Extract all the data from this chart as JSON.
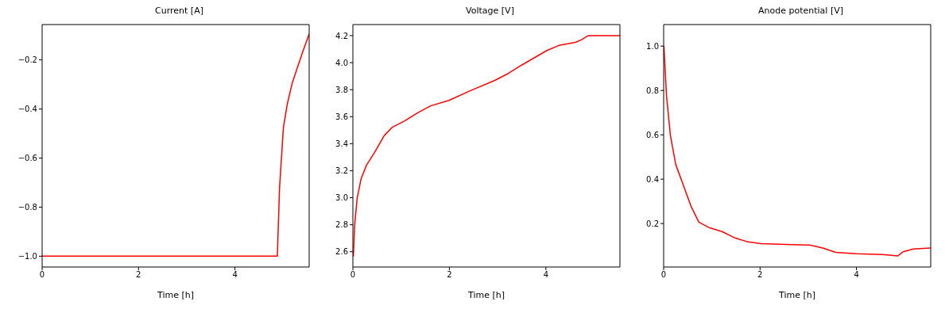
{
  "chart_data": [
    {
      "type": "line",
      "title": "Current [A]",
      "xlabel": "Time [h]",
      "xlim": [
        0,
        5.54
      ],
      "ylim": [
        -1.044,
        -0.056
      ],
      "xticks": [
        0,
        2,
        4
      ],
      "yticks": [
        {
          "value": -1.0,
          "label": "−1.0"
        },
        {
          "value": -0.8,
          "label": "−0.8"
        },
        {
          "value": -0.6,
          "label": "−0.6"
        },
        {
          "value": -0.4,
          "label": "−0.4"
        },
        {
          "value": -0.2,
          "label": "−0.2"
        }
      ],
      "series": [
        {
          "color": "#ff0000",
          "x": [
            0,
            1,
            2,
            3,
            4,
            4.88,
            4.925,
            5.005,
            5.087,
            5.19,
            5.3,
            5.41,
            5.54
          ],
          "values": [
            -1,
            -1,
            -1,
            -1,
            -1,
            -1,
            -0.723,
            -0.476,
            -0.379,
            -0.293,
            -0.229,
            -0.165,
            -0.094
          ]
        }
      ]
    },
    {
      "type": "line",
      "title": "Voltage [V]",
      "xlabel": "Time [h]",
      "xlim": [
        0,
        5.535
      ],
      "ylim": [
        2.487,
        4.282
      ],
      "xticks": [
        0,
        2,
        4
      ],
      "yticks": [
        2.6,
        2.8,
        {
          "value": 3.0,
          "label": "3.0"
        },
        3.2,
        3.4,
        3.6,
        3.8,
        {
          "value": 4.0,
          "label": "4.0"
        },
        4.2
      ],
      "series": [
        {
          "color": "#ff0000",
          "x": [
            0.01,
            0.037,
            0.09,
            0.17,
            0.28,
            0.44,
            0.65,
            0.81,
            1.08,
            1.35,
            1.61,
            1.99,
            2.42,
            2.95,
            3.22,
            3.49,
            4.02,
            4.29,
            4.61,
            4.74,
            4.88,
            5.535
          ],
          "values": [
            2.565,
            2.8,
            3.0,
            3.14,
            3.24,
            3.33,
            3.46,
            3.52,
            3.57,
            3.63,
            3.68,
            3.72,
            3.79,
            3.87,
            3.92,
            3.98,
            4.09,
            4.13,
            4.15,
            4.17,
            4.2,
            4.2
          ]
        }
      ]
    },
    {
      "type": "line",
      "title": "Anode potential [V]",
      "xlabel": "Time [h]",
      "xlim": [
        0,
        5.54
      ],
      "ylim": [
        0.004,
        1.097
      ],
      "xticks": [
        0,
        2,
        4
      ],
      "yticks": [
        0.2,
        0.4,
        0.6,
        0.8,
        {
          "value": 1.0,
          "label": "1.0"
        }
      ],
      "series": [
        {
          "color": "#ff0000",
          "x": [
            0.005,
            0.06,
            0.14,
            0.25,
            0.41,
            0.57,
            0.73,
            0.94,
            1.21,
            1.48,
            1.75,
            2.02,
            2.66,
            3.03,
            3.3,
            3.57,
            4.0,
            4.54,
            4.86,
            4.97,
            5.18,
            5.54
          ],
          "values": [
            1.0,
            0.775,
            0.597,
            0.467,
            0.372,
            0.277,
            0.206,
            0.182,
            0.164,
            0.135,
            0.117,
            0.109,
            0.105,
            0.103,
            0.09,
            0.07,
            0.064,
            0.06,
            0.054,
            0.073,
            0.085,
            0.09
          ]
        }
      ]
    }
  ]
}
